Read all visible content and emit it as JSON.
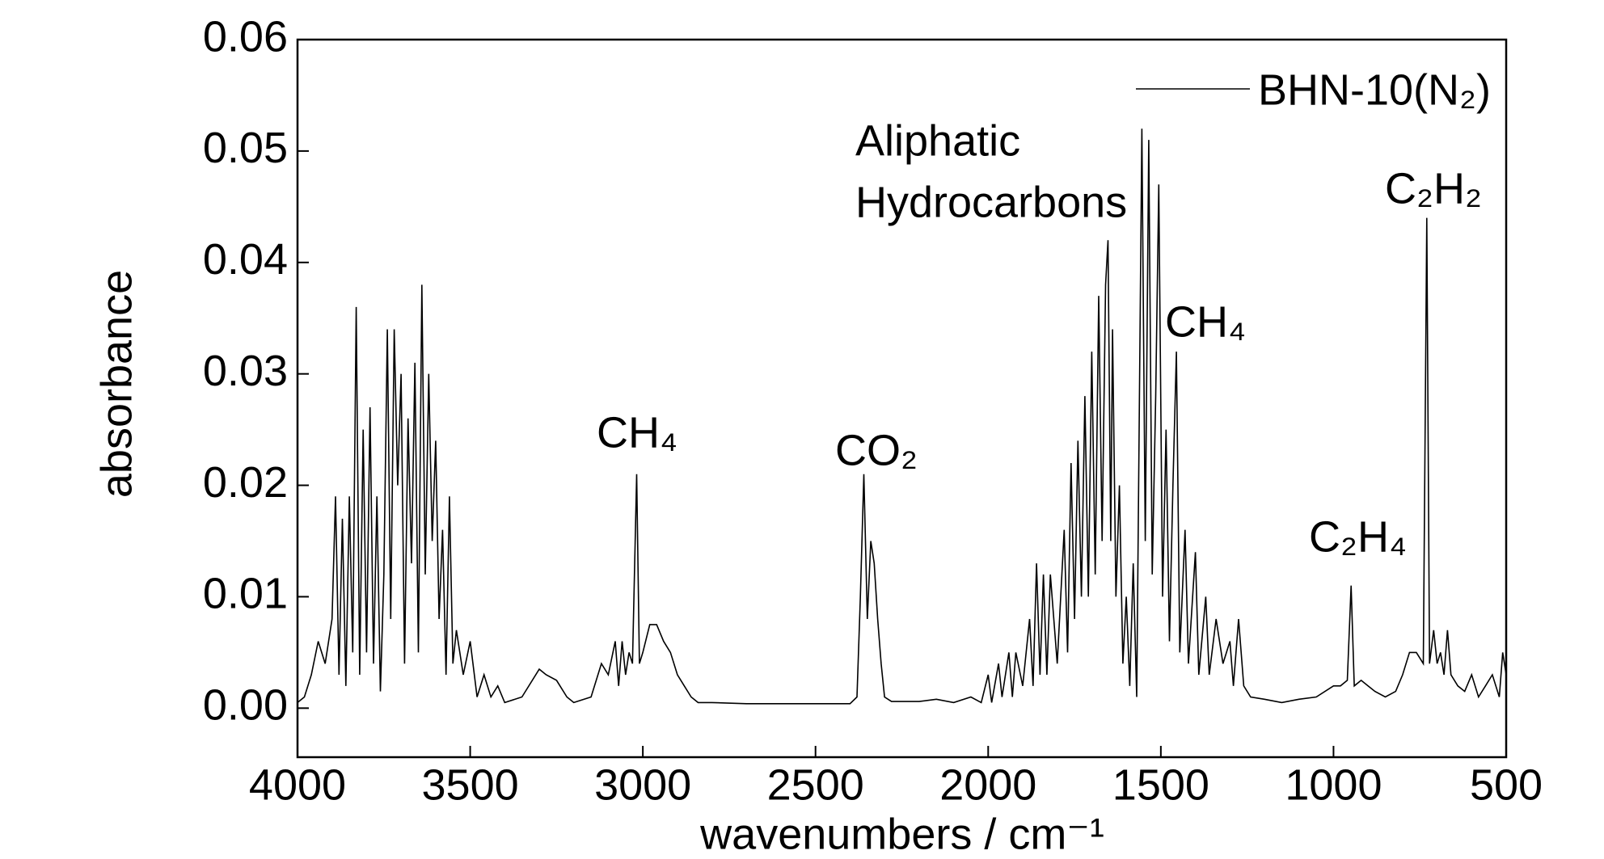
{
  "chart_data": {
    "type": "line",
    "x_label": "wavenumbers / cm⁻¹",
    "y_label": "absorbance",
    "xlim": [
      4000,
      500
    ],
    "xticks": [
      4000,
      3500,
      3000,
      2500,
      2000,
      1500,
      1000,
      500
    ],
    "ylim": [
      -0.0044,
      0.06
    ],
    "yticks": [
      {
        "value": 0,
        "label": "0.00"
      },
      0.01,
      0.02,
      0.03,
      0.04,
      0.05,
      0.06
    ],
    "legend": "upper right",
    "annotations": [
      "Aliphatic",
      "Hydrocarbons",
      "CH₄",
      "CO₂",
      "CH₄",
      "C₂H₄",
      "C₂H₂"
    ],
    "x": [
      4000,
      3980,
      3960,
      3940,
      3920,
      3900,
      3890,
      3880,
      3870,
      3860,
      3850,
      3840,
      3830,
      3820,
      3810,
      3800,
      3790,
      3780,
      3770,
      3760,
      3750,
      3740,
      3730,
      3720,
      3710,
      3700,
      3690,
      3680,
      3670,
      3660,
      3650,
      3640,
      3630,
      3620,
      3610,
      3600,
      3590,
      3580,
      3570,
      3560,
      3550,
      3540,
      3520,
      3500,
      3480,
      3460,
      3440,
      3420,
      3400,
      3350,
      3300,
      3280,
      3250,
      3220,
      3200,
      3150,
      3120,
      3100,
      3080,
      3070,
      3060,
      3050,
      3040,
      3030,
      3018,
      3010,
      3000,
      2980,
      2960,
      2940,
      2920,
      2900,
      2880,
      2860,
      2840,
      2800,
      2700,
      2600,
      2500,
      2400,
      2380,
      2370,
      2360,
      2350,
      2340,
      2330,
      2320,
      2310,
      2300,
      2280,
      2200,
      2150,
      2100,
      2050,
      2020,
      2000,
      1990,
      1970,
      1960,
      1940,
      1930,
      1920,
      1900,
      1880,
      1870,
      1860,
      1850,
      1840,
      1830,
      1820,
      1800,
      1780,
      1770,
      1760,
      1750,
      1740,
      1730,
      1720,
      1710,
      1700,
      1690,
      1680,
      1670,
      1660,
      1653,
      1645,
      1640,
      1630,
      1620,
      1610,
      1600,
      1590,
      1580,
      1570,
      1555,
      1545,
      1535,
      1525,
      1515,
      1506,
      1495,
      1485,
      1475,
      1465,
      1455,
      1445,
      1430,
      1420,
      1400,
      1390,
      1370,
      1360,
      1340,
      1320,
      1300,
      1290,
      1275,
      1260,
      1240,
      1200,
      1150,
      1100,
      1050,
      1000,
      980,
      960,
      949,
      940,
      920,
      900,
      880,
      850,
      820,
      800,
      780,
      760,
      740,
      730,
      722,
      710,
      700,
      690,
      680,
      670,
      660,
      640,
      620,
      600,
      580,
      560,
      540,
      520,
      510,
      500
    ],
    "series": [
      {
        "name": "BHN-10(N₂)",
        "color": "#000000",
        "values": [
          0.0005,
          0.001,
          0.003,
          0.006,
          0.004,
          0.008,
          0.019,
          0.003,
          0.017,
          0.002,
          0.019,
          0.005,
          0.036,
          0.003,
          0.025,
          0.005,
          0.027,
          0.004,
          0.019,
          0.0015,
          0.012,
          0.034,
          0.008,
          0.034,
          0.02,
          0.03,
          0.004,
          0.026,
          0.013,
          0.031,
          0.005,
          0.038,
          0.012,
          0.03,
          0.015,
          0.024,
          0.008,
          0.016,
          0.003,
          0.019,
          0.004,
          0.007,
          0.003,
          0.006,
          0.001,
          0.003,
          0.001,
          0.002,
          0.0005,
          0.001,
          0.0035,
          0.003,
          0.0025,
          0.001,
          0.0005,
          0.001,
          0.004,
          0.003,
          0.006,
          0.002,
          0.006,
          0.003,
          0.005,
          0.004,
          0.021,
          0.004,
          0.005,
          0.0075,
          0.0075,
          0.006,
          0.005,
          0.003,
          0.002,
          0.001,
          0.0005,
          0.0005,
          0.0004,
          0.0004,
          0.0004,
          0.0004,
          0.001,
          0.01,
          0.021,
          0.008,
          0.015,
          0.013,
          0.008,
          0.004,
          0.001,
          0.0006,
          0.0006,
          0.0008,
          0.0005,
          0.001,
          0.0005,
          0.003,
          0.0005,
          0.004,
          0.001,
          0.005,
          0.001,
          0.005,
          0.002,
          0.008,
          0.002,
          0.013,
          0.003,
          0.012,
          0.003,
          0.012,
          0.004,
          0.016,
          0.005,
          0.022,
          0.008,
          0.024,
          0.01,
          0.028,
          0.01,
          0.032,
          0.012,
          0.037,
          0.015,
          0.038,
          0.042,
          0.015,
          0.034,
          0.01,
          0.02,
          0.004,
          0.01,
          0.002,
          0.013,
          0.001,
          0.052,
          0.015,
          0.051,
          0.012,
          0.028,
          0.047,
          0.01,
          0.025,
          0.006,
          0.02,
          0.032,
          0.005,
          0.016,
          0.004,
          0.014,
          0.003,
          0.01,
          0.003,
          0.008,
          0.004,
          0.006,
          0.002,
          0.008,
          0.002,
          0.001,
          0.0008,
          0.0005,
          0.0008,
          0.001,
          0.002,
          0.002,
          0.0025,
          0.011,
          0.002,
          0.0025,
          0.002,
          0.0015,
          0.001,
          0.0015,
          0.003,
          0.005,
          0.005,
          0.004,
          0.044,
          0.004,
          0.007,
          0.004,
          0.005,
          0.003,
          0.007,
          0.003,
          0.002,
          0.0015,
          0.003,
          0.001,
          0.002,
          0.003,
          0.001,
          0.005,
          0.003
        ]
      }
    ]
  }
}
